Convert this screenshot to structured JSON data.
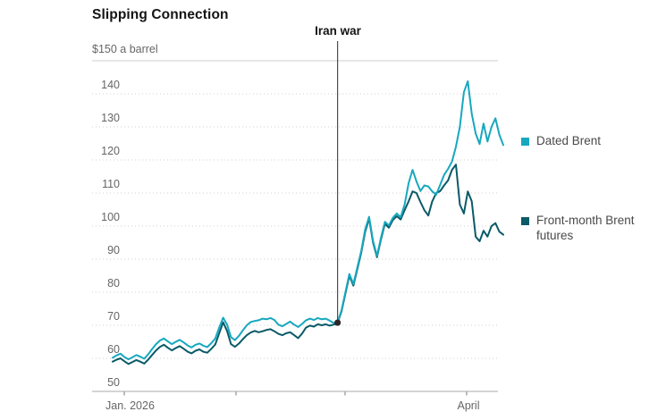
{
  "title": "Slipping Connection",
  "annotation": {
    "label": "Iran war"
  },
  "y_axis": {
    "unit_label": "$150 a barrel"
  },
  "x_axis": {
    "labels": [
      "Jan. 2026",
      "April"
    ]
  },
  "legend": [
    {
      "label": "Dated Brent",
      "color": "#17a8be"
    },
    {
      "label": "Front-month Brent futures",
      "color": "#0a5a67"
    }
  ],
  "chart_data": {
    "type": "line",
    "title": "Slipping Connection",
    "unit_label": "$150 a barrel",
    "x_axis_labels": [
      "Jan. 2026",
      "April"
    ],
    "ylim": [
      50,
      150
    ],
    "y_ticks": [
      150,
      140,
      130,
      120,
      110,
      100,
      90,
      80,
      70,
      60,
      50
    ],
    "grid": true,
    "legend_position": "right",
    "event_marker": {
      "label": "Iran war",
      "index": 57,
      "value": 70.8,
      "line_color": "#4d4d4d",
      "dot_color": "#2e2626"
    },
    "series": [
      {
        "name": "Dated Brent",
        "color": "#17a8be",
        "values": [
          60.2,
          60.9,
          61.4,
          60.4,
          59.7,
          60.3,
          61.0,
          60.5,
          59.9,
          61.2,
          62.8,
          64.3,
          65.4,
          66.0,
          65.1,
          64.3,
          65.0,
          65.6,
          64.8,
          63.9,
          63.3,
          64.1,
          64.5,
          63.8,
          63.4,
          64.6,
          66.0,
          69.3,
          72.3,
          70.2,
          66.4,
          65.5,
          66.8,
          68.5,
          70.0,
          71.0,
          71.3,
          71.5,
          72.0,
          71.8,
          72.2,
          71.6,
          70.2,
          69.7,
          70.4,
          71.1,
          70.2,
          69.5,
          70.4,
          71.5,
          72.0,
          71.6,
          72.2,
          71.8,
          72.0,
          71.4,
          70.7,
          70.9,
          74.5,
          80.0,
          85.5,
          82.5,
          87.5,
          92.5,
          99.0,
          102.8,
          95.5,
          91.0,
          96.5,
          101.3,
          100.2,
          102.5,
          103.8,
          102.7,
          106.5,
          113.0,
          117.0,
          113.5,
          110.6,
          112.3,
          112.0,
          110.5,
          109.5,
          112.5,
          115.5,
          117.3,
          119.5,
          124.0,
          130.0,
          140.5,
          143.8,
          134.0,
          128.0,
          124.8,
          131.0,
          125.6,
          130.0,
          132.6,
          127.6,
          124.5
        ]
      },
      {
        "name": "Front-month Brent futures",
        "color": "#0a5a67",
        "values": [
          59.0,
          59.6,
          60.0,
          59.1,
          58.3,
          58.9,
          59.5,
          59.0,
          58.4,
          59.6,
          61.0,
          62.4,
          63.5,
          64.1,
          63.2,
          62.4,
          63.1,
          63.7,
          62.9,
          62.0,
          61.5,
          62.3,
          62.7,
          62.0,
          61.7,
          62.9,
          64.2,
          67.6,
          70.9,
          68.3,
          64.3,
          63.5,
          64.5,
          65.8,
          67.0,
          67.8,
          68.3,
          67.9,
          68.2,
          68.6,
          68.8,
          68.2,
          67.4,
          67.0,
          67.6,
          67.9,
          67.0,
          66.1,
          67.5,
          69.3,
          69.9,
          69.6,
          70.3,
          70.0,
          70.3,
          69.9,
          70.2,
          70.7,
          74.2,
          79.6,
          85.0,
          82.0,
          87.0,
          92.0,
          98.3,
          102.3,
          95.0,
          90.6,
          96.0,
          100.7,
          99.5,
          101.8,
          103.0,
          102.0,
          104.8,
          107.5,
          110.5,
          110.0,
          107.3,
          104.8,
          103.2,
          107.5,
          110.0,
          110.6,
          112.3,
          113.8,
          117.0,
          118.6,
          106.5,
          103.8,
          110.5,
          107.5,
          96.8,
          95.4,
          98.6,
          96.8,
          100.0,
          100.9,
          98.3,
          97.4
        ]
      }
    ]
  }
}
